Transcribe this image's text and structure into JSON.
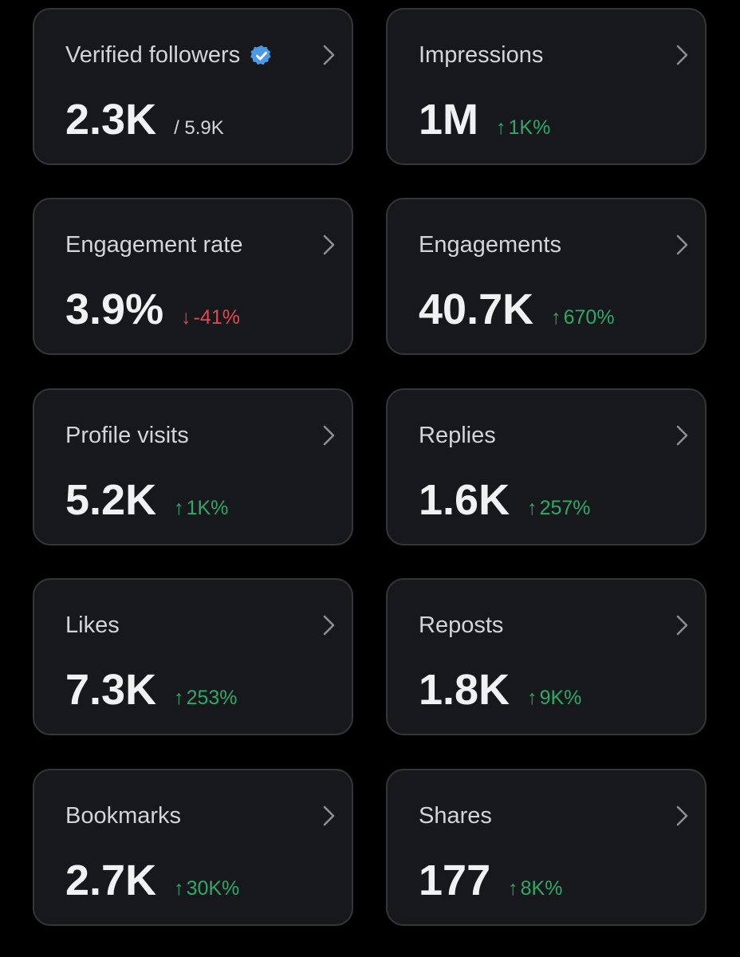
{
  "cards": [
    {
      "title": "Verified followers",
      "value": "2.3K",
      "total": "/ 5.9K",
      "verified": true
    },
    {
      "title": "Impressions",
      "value": "1M",
      "change": {
        "arrow": "↑",
        "text": "1K%",
        "direction": "up"
      }
    },
    {
      "title": "Engagement rate",
      "value": "3.9%",
      "change": {
        "arrow": "↓",
        "text": "-41%",
        "direction": "down"
      }
    },
    {
      "title": "Engagements",
      "value": "40.7K",
      "change": {
        "arrow": "↑",
        "text": "670%",
        "direction": "up"
      }
    },
    {
      "title": "Profile visits",
      "value": "5.2K",
      "change": {
        "arrow": "↑",
        "text": "1K%",
        "direction": "up"
      }
    },
    {
      "title": "Replies",
      "value": "1.6K",
      "change": {
        "arrow": "↑",
        "text": "257%",
        "direction": "up"
      }
    },
    {
      "title": "Likes",
      "value": "7.3K",
      "change": {
        "arrow": "↑",
        "text": "253%",
        "direction": "up"
      }
    },
    {
      "title": "Reposts",
      "value": "1.8K",
      "change": {
        "arrow": "↑",
        "text": "9K%",
        "direction": "up"
      }
    },
    {
      "title": "Bookmarks",
      "value": "2.7K",
      "change": {
        "arrow": "↑",
        "text": "30K%",
        "direction": "up"
      }
    },
    {
      "title": "Shares",
      "value": "177",
      "change": {
        "arrow": "↑",
        "text": "8K%",
        "direction": "up"
      }
    }
  ],
  "colors": {
    "background": "#000000",
    "card": "#16181c",
    "card_border": "#33363b",
    "positive": "#2fa868",
    "negative": "#e2484e",
    "verified_badge": "#4a99e9"
  },
  "icons": {
    "verified": "verified-badge-icon",
    "chevron": "chevron-right-icon"
  }
}
